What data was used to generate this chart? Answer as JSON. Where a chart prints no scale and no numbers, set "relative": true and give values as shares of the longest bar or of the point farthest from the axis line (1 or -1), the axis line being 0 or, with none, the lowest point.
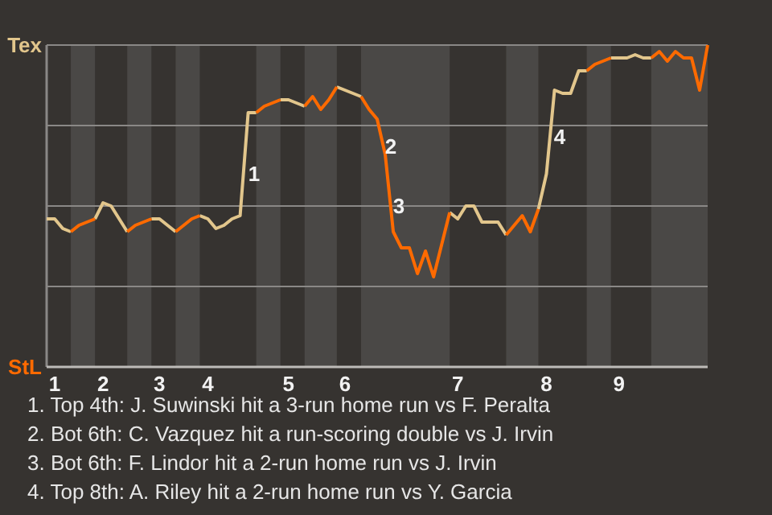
{
  "chart_data": {
    "type": "line",
    "relative": true,
    "categories": [
      null,
      "1",
      null,
      null,
      null,
      null,
      null,
      "2",
      null,
      null,
      null,
      null,
      null,
      null,
      "3",
      null,
      null,
      null,
      null,
      null,
      "4",
      null,
      null,
      null,
      null,
      null,
      null,
      null,
      null,
      null,
      "5",
      null,
      null,
      null,
      null,
      null,
      null,
      "6",
      null,
      null,
      null,
      null,
      null,
      null,
      null,
      null,
      null,
      null,
      null,
      null,
      null,
      "7",
      null,
      null,
      null,
      null,
      null,
      null,
      null,
      null,
      null,
      null,
      "8",
      null,
      null,
      null,
      null,
      null,
      null,
      null,
      null,
      "9",
      null,
      null,
      null,
      null,
      null,
      null,
      null,
      null,
      null,
      null,
      null
    ],
    "grid": "y",
    "series": [
      {
        "color": "#e2c68c",
        "values": [
          0.46,
          0.46,
          0.43,
          0.42,
          null,
          null,
          0.46,
          0.51,
          0.5,
          0.46,
          0.42,
          null,
          null,
          0.46,
          0.46,
          0.44,
          0.42,
          null,
          null,
          0.47,
          0.46,
          0.43,
          0.44,
          0.46,
          0.47,
          0.79,
          0.79,
          null,
          null,
          0.83,
          0.83,
          0.82,
          0.81,
          null,
          null,
          null,
          0.87,
          0.86,
          0.85,
          0.84,
          null,
          null,
          null,
          null,
          null,
          null,
          null,
          null,
          null,
          null,
          0.48,
          0.46,
          0.5,
          0.5,
          0.45,
          0.45,
          0.45,
          0.41,
          null,
          null,
          null,
          0.49,
          0.6,
          0.86,
          0.85,
          0.85,
          0.92,
          0.92,
          null,
          null,
          0.96,
          0.96,
          0.96,
          0.97,
          0.96,
          0.96,
          null,
          null,
          null,
          null,
          null,
          null,
          null
        ]
      },
      {
        "color": "#ff6a00",
        "values": [
          null,
          null,
          null,
          0.42,
          0.44,
          0.45,
          0.46,
          null,
          null,
          null,
          0.42,
          0.44,
          0.45,
          0.46,
          null,
          null,
          0.42,
          0.44,
          0.46,
          0.47,
          null,
          null,
          null,
          null,
          null,
          null,
          0.79,
          0.81,
          0.82,
          0.83,
          null,
          null,
          0.81,
          0.84,
          0.8,
          0.83,
          0.87,
          null,
          null,
          0.84,
          0.8,
          0.77,
          0.66,
          0.42,
          0.37,
          0.37,
          0.29,
          0.36,
          0.28,
          0.38,
          0.48,
          null,
          null,
          null,
          null,
          null,
          null,
          0.41,
          0.44,
          0.47,
          0.42,
          0.49,
          null,
          null,
          null,
          null,
          null,
          0.92,
          0.94,
          0.95,
          0.96,
          null,
          null,
          null,
          null,
          0.96,
          0.98,
          0.95,
          0.98,
          0.96,
          0.96,
          0.86,
          1
        ]
      }
    ],
    "annotations": [
      "Tex",
      "StL",
      "1",
      "2",
      "3",
      "4",
      "1. Top 4th: J. Suwinski hit a 3-run home run vs F. Peralta",
      "2. Bot 6th: C. Vazquez hit a run-scoring double vs J. Irvin",
      "3. Bot 6th: F. Lindor hit a 2-run home run vs J. Irvin",
      "4. Top 8th: A. Riley hit a 2-run home run vs Y. Garcia"
    ]
  }
}
